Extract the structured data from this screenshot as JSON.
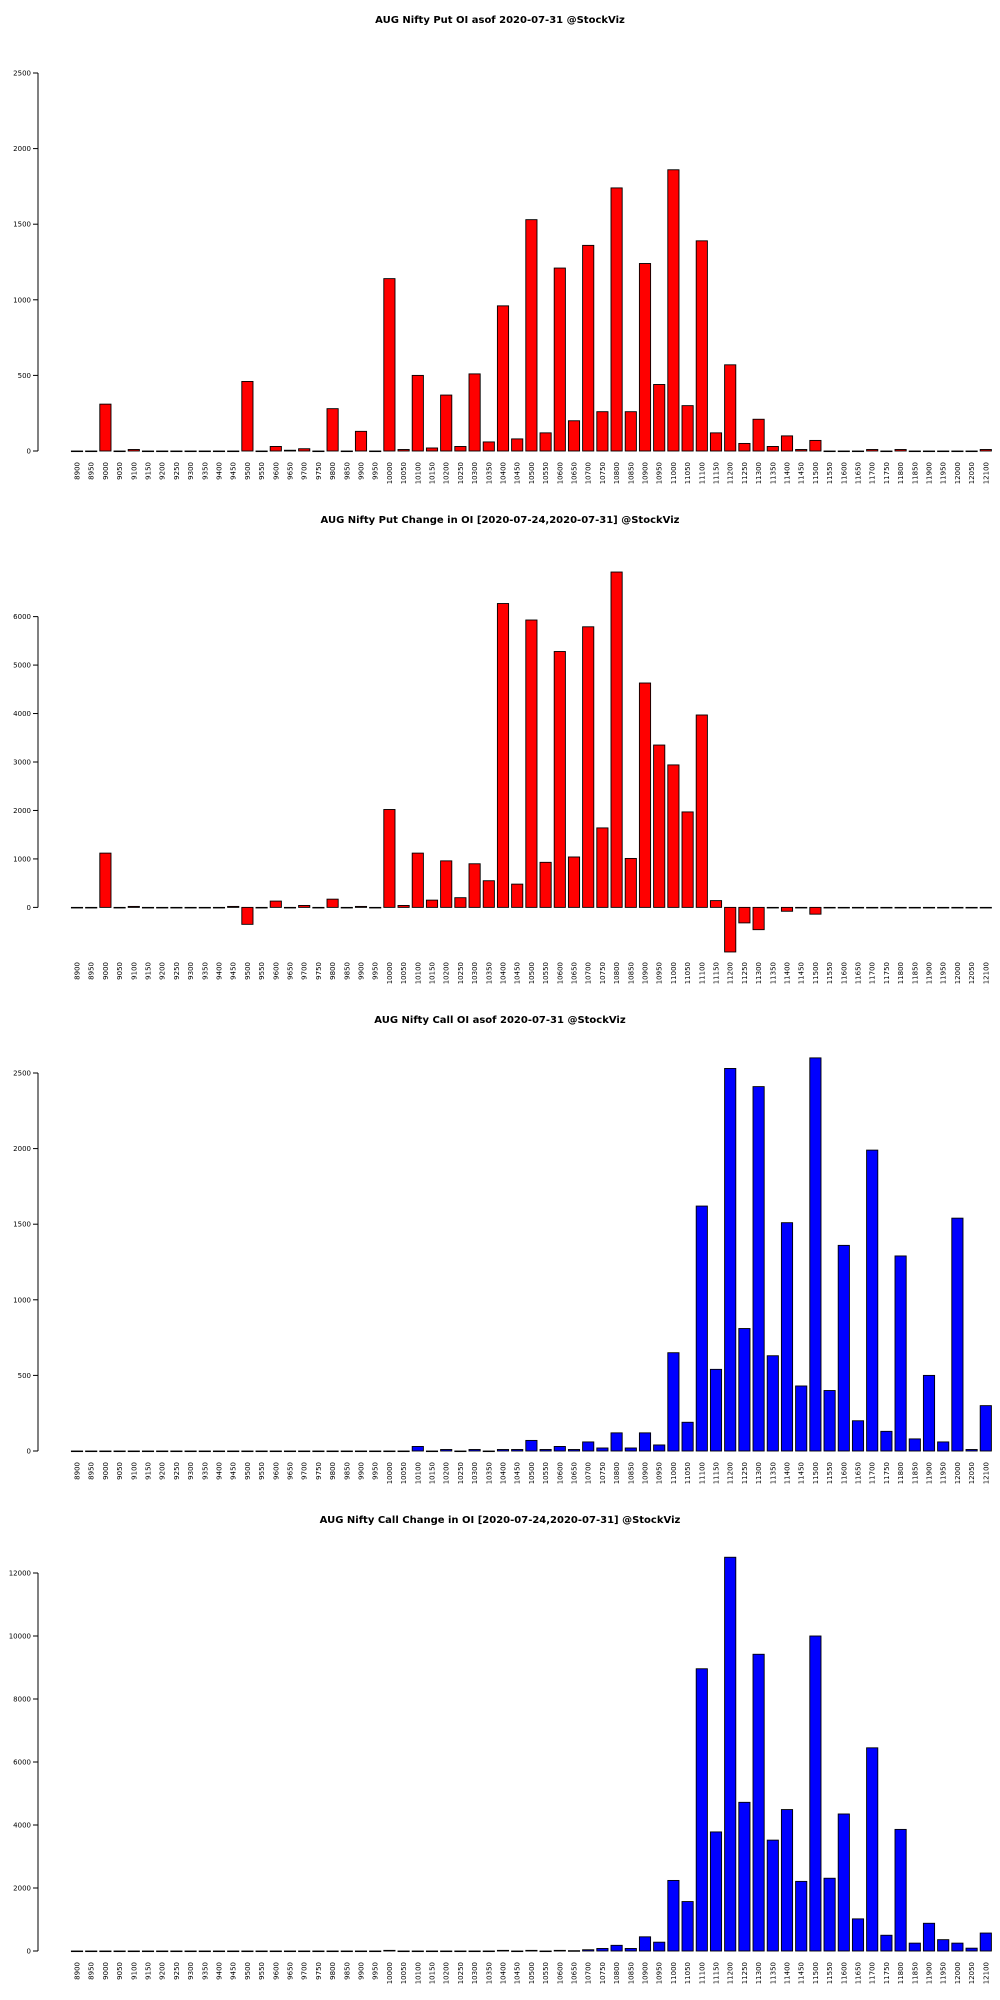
{
  "colors": {
    "put": "#ff0000",
    "call": "#0000ff",
    "outline": "#000000"
  },
  "strikes": [
    "8900",
    "8950",
    "9000",
    "9050",
    "9100",
    "9150",
    "9200",
    "9250",
    "9300",
    "9350",
    "9400",
    "9450",
    "9500",
    "9550",
    "9600",
    "9650",
    "9700",
    "9750",
    "9800",
    "9850",
    "9900",
    "9950",
    "10000",
    "10050",
    "10100",
    "10150",
    "10200",
    "10250",
    "10300",
    "10350",
    "10400",
    "10450",
    "10500",
    "10550",
    "10600",
    "10650",
    "10700",
    "10750",
    "10800",
    "10850",
    "10900",
    "10950",
    "11000",
    "11050",
    "11100",
    "11150",
    "11200",
    "11250",
    "11300",
    "11350",
    "11400",
    "11450",
    "11500",
    "11550",
    "11600",
    "11650",
    "11700",
    "11750",
    "11800",
    "11850",
    "11900",
    "11950",
    "12000",
    "12050",
    "12100"
  ],
  "chart_data": [
    {
      "type": "bar",
      "title": "AUG Nifty Put OI asof 2020-07-31 @StockViz",
      "xlabel": "",
      "ylabel": "",
      "color": "#ff0000",
      "ylim": [
        0,
        2500
      ],
      "yticks": [
        0,
        500,
        1000,
        1500,
        2000,
        2500
      ],
      "values": [
        0,
        0,
        310,
        0,
        10,
        0,
        0,
        0,
        0,
        0,
        0,
        0,
        460,
        0,
        30,
        5,
        15,
        0,
        280,
        0,
        130,
        0,
        1140,
        10,
        500,
        20,
        370,
        30,
        510,
        60,
        960,
        80,
        1530,
        120,
        1210,
        200,
        1360,
        260,
        1740,
        260,
        1240,
        440,
        1860,
        300,
        1390,
        120,
        570,
        50,
        210,
        30,
        100,
        10,
        70,
        0,
        0,
        0,
        10,
        0,
        10,
        0,
        0,
        0,
        0,
        0,
        10
      ]
    },
    {
      "type": "bar",
      "title": "AUG Nifty Put Change in OI [2020-07-24,2020-07-31] @StockViz",
      "xlabel": "",
      "ylabel": "",
      "color": "#ff0000",
      "ylim": [
        -900,
        6900
      ],
      "yticks": [
        0,
        1000,
        2000,
        3000,
        4000,
        5000,
        6000
      ],
      "values": [
        0,
        0,
        1120,
        0,
        20,
        0,
        0,
        0,
        0,
        0,
        0,
        20,
        -350,
        0,
        130,
        0,
        40,
        0,
        170,
        0,
        20,
        0,
        2020,
        40,
        1120,
        150,
        960,
        200,
        900,
        550,
        6270,
        480,
        5930,
        930,
        5280,
        1040,
        5790,
        1640,
        6920,
        1010,
        4630,
        3350,
        2940,
        1970,
        3970,
        140,
        -920,
        -320,
        -460,
        0,
        -80,
        0,
        -140,
        0,
        0,
        0,
        0,
        0,
        0,
        0,
        0,
        0,
        0,
        0,
        0
      ]
    },
    {
      "type": "bar",
      "title": "AUG Nifty Call OI asof 2020-07-31 @StockViz",
      "xlabel": "",
      "ylabel": "",
      "color": "#0000ff",
      "ylim": [
        0,
        2500
      ],
      "yticks": [
        0,
        500,
        1000,
        1500,
        2000,
        2500
      ],
      "values": [
        0,
        0,
        0,
        0,
        0,
        0,
        0,
        0,
        0,
        0,
        0,
        0,
        0,
        0,
        0,
        0,
        0,
        0,
        0,
        0,
        0,
        0,
        0,
        0,
        30,
        0,
        10,
        0,
        10,
        0,
        10,
        10,
        70,
        10,
        30,
        10,
        60,
        20,
        120,
        20,
        120,
        40,
        650,
        190,
        1620,
        540,
        2530,
        810,
        2410,
        630,
        1510,
        430,
        2600,
        400,
        1360,
        200,
        1990,
        130,
        1290,
        80,
        500,
        60,
        1540,
        10,
        300
      ]
    },
    {
      "type": "bar",
      "title": "AUG Nifty Call Change in OI [2020-07-24,2020-07-31] @StockViz",
      "xlabel": "",
      "ylabel": "",
      "color": "#0000ff",
      "ylim": [
        0,
        12000
      ],
      "yticks": [
        0,
        2000,
        4000,
        6000,
        8000,
        10000,
        12000
      ],
      "values": [
        0,
        0,
        0,
        0,
        0,
        0,
        0,
        0,
        0,
        0,
        0,
        0,
        0,
        0,
        0,
        0,
        0,
        0,
        0,
        0,
        0,
        0,
        20,
        0,
        0,
        0,
        0,
        0,
        0,
        0,
        20,
        0,
        20,
        0,
        20,
        10,
        40,
        80,
        180,
        80,
        450,
        280,
        2240,
        1570,
        8960,
        3780,
        12500,
        4720,
        9420,
        3520,
        4490,
        2210,
        10000,
        2310,
        4350,
        1020,
        6450,
        500,
        3860,
        250,
        880,
        360,
        250,
        90,
        570
      ]
    }
  ]
}
